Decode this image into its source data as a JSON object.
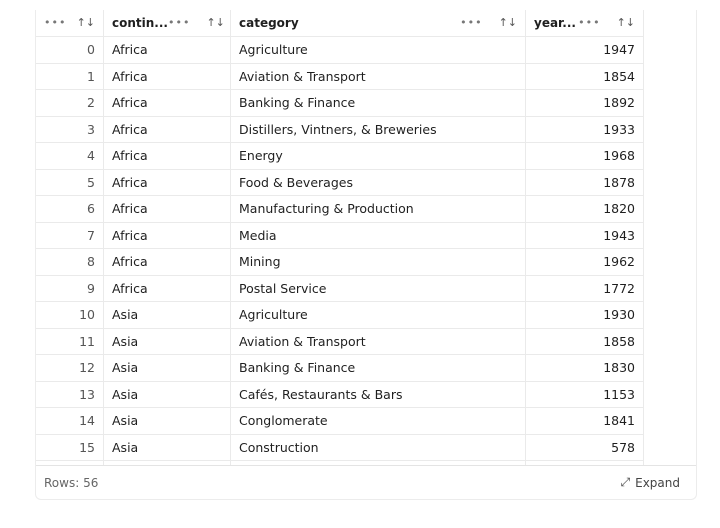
{
  "columns": [
    {
      "label": ""
    },
    {
      "label": "contin..."
    },
    {
      "label": "category"
    },
    {
      "label": "year..."
    }
  ],
  "header_icons": {
    "menu": "more-horizontal-icon",
    "sort": "sort-arrows-icon"
  },
  "rows": [
    [
      "0",
      "Africa",
      "Agriculture",
      "1947"
    ],
    [
      "1",
      "Africa",
      "Aviation & Transport",
      "1854"
    ],
    [
      "2",
      "Africa",
      "Banking & Finance",
      "1892"
    ],
    [
      "3",
      "Africa",
      "Distillers, Vintners, & Breweries",
      "1933"
    ],
    [
      "4",
      "Africa",
      "Energy",
      "1968"
    ],
    [
      "5",
      "Africa",
      "Food & Beverages",
      "1878"
    ],
    [
      "6",
      "Africa",
      "Manufacturing & Production",
      "1820"
    ],
    [
      "7",
      "Africa",
      "Media",
      "1943"
    ],
    [
      "8",
      "Africa",
      "Mining",
      "1962"
    ],
    [
      "9",
      "Africa",
      "Postal Service",
      "1772"
    ],
    [
      "10",
      "Asia",
      "Agriculture",
      "1930"
    ],
    [
      "11",
      "Asia",
      "Aviation & Transport",
      "1858"
    ],
    [
      "12",
      "Asia",
      "Banking & Finance",
      "1830"
    ],
    [
      "13",
      "Asia",
      "Cafés, Restaurants & Bars",
      "1153"
    ],
    [
      "14",
      "Asia",
      "Conglomerate",
      "1841"
    ],
    [
      "15",
      "Asia",
      "Construction",
      "578"
    ],
    [
      "",
      "",
      "",
      ""
    ]
  ],
  "footer": {
    "rows_label": "Rows: 56",
    "expand_label": "Expand"
  }
}
